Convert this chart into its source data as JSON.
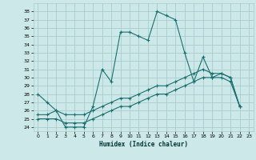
{
  "xlabel": "Humidex (Indice chaleur)",
  "background_color": "#cde8e8",
  "grid_color": "#aacccc",
  "line_color": "#1a7070",
  "xlim": [
    -0.5,
    23.5
  ],
  "ylim": [
    23.5,
    39.0
  ],
  "xticks": [
    0,
    1,
    2,
    3,
    4,
    5,
    6,
    7,
    8,
    9,
    10,
    11,
    12,
    13,
    14,
    15,
    16,
    17,
    18,
    19,
    20,
    21,
    22,
    23
  ],
  "yticks": [
    24,
    25,
    26,
    27,
    28,
    29,
    30,
    31,
    32,
    33,
    34,
    35,
    36,
    37,
    38
  ],
  "series1_x": [
    0,
    1,
    2,
    3,
    4,
    5,
    6,
    7,
    8,
    9,
    10,
    11,
    12,
    13,
    14,
    15,
    16,
    17,
    18,
    19,
    20,
    21,
    22
  ],
  "series1_y": [
    28.0,
    27.0,
    26.0,
    24.0,
    24.0,
    24.0,
    26.5,
    31.0,
    29.5,
    35.5,
    35.5,
    35.0,
    34.5,
    38.0,
    37.5,
    37.0,
    33.0,
    29.5,
    32.5,
    30.0,
    30.0,
    29.5,
    26.5
  ],
  "series2_x": [
    0,
    1,
    2,
    3,
    4,
    5,
    6,
    7,
    8,
    9,
    10,
    11,
    12,
    13,
    14,
    15,
    16,
    17,
    18,
    19,
    20,
    21,
    22
  ],
  "series2_y": [
    25.5,
    25.5,
    26.0,
    25.5,
    25.5,
    25.5,
    26.0,
    26.5,
    27.0,
    27.5,
    27.5,
    28.0,
    28.5,
    29.0,
    29.0,
    29.5,
    30.0,
    30.5,
    31.0,
    30.5,
    30.5,
    30.0,
    26.5
  ],
  "series3_x": [
    0,
    1,
    2,
    3,
    4,
    5,
    6,
    7,
    8,
    9,
    10,
    11,
    12,
    13,
    14,
    15,
    16,
    17,
    18,
    19,
    20,
    21,
    22
  ],
  "series3_y": [
    25.0,
    25.0,
    25.0,
    24.5,
    24.5,
    24.5,
    25.0,
    25.5,
    26.0,
    26.5,
    26.5,
    27.0,
    27.5,
    28.0,
    28.0,
    28.5,
    29.0,
    29.5,
    30.0,
    30.0,
    30.5,
    30.0,
    26.5
  ]
}
